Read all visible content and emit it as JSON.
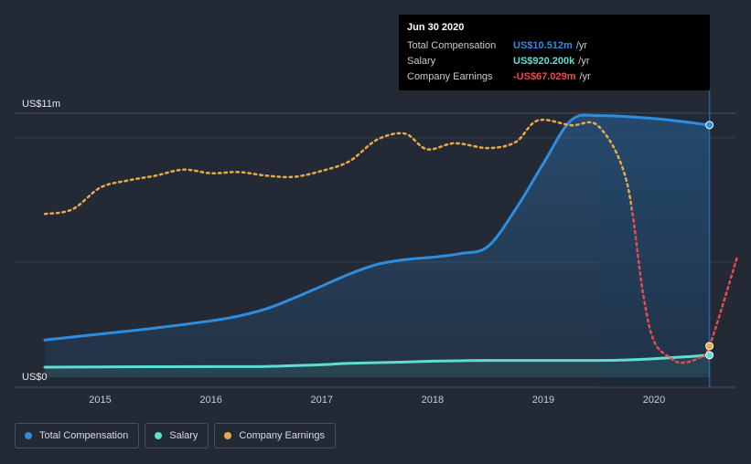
{
  "chart_data": {
    "type": "line",
    "xlim": [
      2014.5,
      2020.75
    ],
    "ylim": [
      0,
      11
    ],
    "y_unit_labels": {
      "top": "US$11m",
      "bottom": "US$0"
    },
    "x_ticks": [
      "2015",
      "2016",
      "2017",
      "2018",
      "2019",
      "2020"
    ],
    "grid": true,
    "legend_position": "bottom-left",
    "series": [
      {
        "key": "total",
        "name": "Total Compensation",
        "color": "#2e8ddf",
        "style": "solid-area",
        "points": [
          [
            2014.5,
            1.55
          ],
          [
            2015.0,
            1.8
          ],
          [
            2015.5,
            2.05
          ],
          [
            2016.0,
            2.35
          ],
          [
            2016.25,
            2.55
          ],
          [
            2016.5,
            2.85
          ],
          [
            2016.75,
            3.3
          ],
          [
            2017.0,
            3.8
          ],
          [
            2017.25,
            4.3
          ],
          [
            2017.5,
            4.7
          ],
          [
            2017.75,
            4.9
          ],
          [
            2018.0,
            5.0
          ],
          [
            2018.25,
            5.15
          ],
          [
            2018.5,
            5.45
          ],
          [
            2018.75,
            7.0
          ],
          [
            2019.0,
            8.9
          ],
          [
            2019.25,
            10.7
          ],
          [
            2019.5,
            10.9
          ],
          [
            2020.0,
            10.78
          ],
          [
            2020.5,
            10.512
          ]
        ]
      },
      {
        "key": "salary",
        "name": "Salary",
        "color": "#5ee0d0",
        "style": "solid-area",
        "points": [
          [
            2014.5,
            0.42
          ],
          [
            2015.0,
            0.43
          ],
          [
            2016.0,
            0.44
          ],
          [
            2016.5,
            0.45
          ],
          [
            2017.0,
            0.52
          ],
          [
            2017.25,
            0.58
          ],
          [
            2017.75,
            0.63
          ],
          [
            2018.0,
            0.67
          ],
          [
            2018.5,
            0.7
          ],
          [
            2019.0,
            0.7
          ],
          [
            2019.5,
            0.7
          ],
          [
            2019.75,
            0.72
          ],
          [
            2020.0,
            0.77
          ],
          [
            2020.25,
            0.84
          ],
          [
            2020.5,
            0.92
          ]
        ]
      },
      {
        "key": "earnings",
        "name": "Company Earnings",
        "color": "#e8a948",
        "color_negative": "#e84c4c",
        "style": "dotted",
        "points": [
          [
            2014.5,
            6.8
          ],
          [
            2014.75,
            7.0
          ],
          [
            2015.0,
            7.9
          ],
          [
            2015.25,
            8.2
          ],
          [
            2015.5,
            8.4
          ],
          [
            2015.75,
            8.65
          ],
          [
            2016.0,
            8.5
          ],
          [
            2016.25,
            8.55
          ],
          [
            2016.5,
            8.4
          ],
          [
            2016.75,
            8.35
          ],
          [
            2017.0,
            8.6
          ],
          [
            2017.25,
            9.0
          ],
          [
            2017.5,
            9.9
          ],
          [
            2017.75,
            10.15
          ],
          [
            2017.95,
            9.5
          ],
          [
            2018.2,
            9.75
          ],
          [
            2018.5,
            9.55
          ],
          [
            2018.75,
            9.8
          ],
          [
            2018.95,
            10.7
          ],
          [
            2019.25,
            10.5
          ],
          [
            2019.5,
            10.45
          ],
          [
            2019.75,
            8.2
          ],
          [
            2019.9,
            3.5
          ],
          [
            2020.0,
            1.5
          ],
          [
            2020.15,
            0.8
          ],
          [
            2020.25,
            0.6
          ],
          [
            2020.4,
            0.8
          ],
          [
            2020.5,
            1.3
          ],
          [
            2020.75,
            5.0
          ]
        ]
      }
    ],
    "highlight": {
      "x": 2020.5,
      "x_start": 2019.5
    }
  },
  "tooltip": {
    "date": "Jun 30 2020",
    "rows": [
      {
        "label": "Total Compensation",
        "value": "US$10.512m",
        "unit": "/yr",
        "color": "#2e8ddf"
      },
      {
        "label": "Salary",
        "value": "US$920.200k",
        "unit": "/yr",
        "color": "#5ee0d0"
      },
      {
        "label": "Company Earnings",
        "value": "-US$67.029m",
        "unit": "/yr",
        "color": "#e84c4c"
      }
    ]
  },
  "legend": [
    {
      "label": "Total Compensation",
      "color": "#2e8ddf"
    },
    {
      "label": "Salary",
      "color": "#5ee0d0"
    },
    {
      "label": "Company Earnings",
      "color": "#e8a948"
    }
  ]
}
